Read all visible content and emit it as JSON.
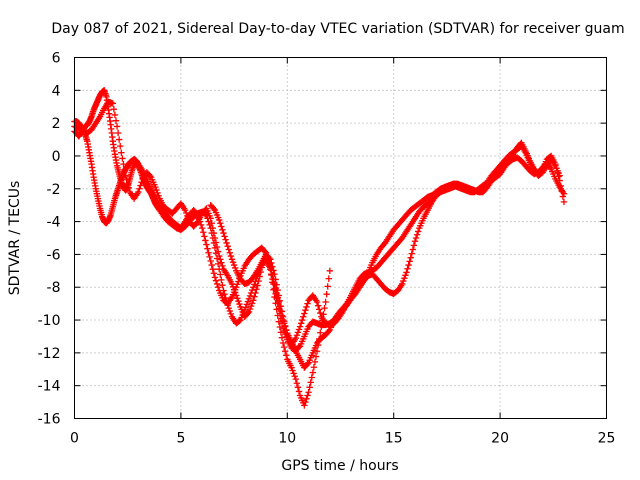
{
  "chart_data": {
    "type": "scatter",
    "title": "Day 087 of 2021, Sidereal Day-to-day VTEC variation (SDTVAR) for receiver guam",
    "xlabel": "GPS time / hours",
    "ylabel": "SDTVAR / TECUs",
    "xlim": [
      0,
      25
    ],
    "ylim": [
      -16,
      6
    ],
    "xticks": [
      "0",
      "5",
      "10",
      "15",
      "20",
      "25"
    ],
    "yticks": [
      "6",
      "4",
      "2",
      "0",
      "-2",
      "-4",
      "-6",
      "-8",
      "-10",
      "-12",
      "-14",
      "-16"
    ],
    "grid": true,
    "marker_color": "#ff0000",
    "series": [
      {
        "x": [
          0.0,
          0.1,
          0.2,
          0.3,
          0.4,
          0.5,
          0.6,
          0.7,
          0.8,
          0.9,
          1.0,
          1.1,
          1.2,
          1.3,
          1.4,
          1.5,
          1.6,
          1.7,
          1.8,
          1.9,
          2.0,
          2.1,
          2.2,
          2.3,
          2.4,
          2.5,
          2.6,
          2.7,
          2.8,
          2.9,
          3.0,
          3.1,
          3.2,
          3.3,
          3.4,
          3.5,
          3.6,
          3.7,
          3.8,
          3.9,
          4.0,
          4.2,
          4.4,
          4.6,
          4.8,
          5.0,
          5.2,
          5.4,
          5.6,
          5.8,
          6.0,
          6.2,
          6.4,
          6.6,
          6.8,
          7.0,
          7.2,
          7.4,
          7.6,
          7.8,
          8.0,
          8.2,
          8.4,
          8.6,
          8.8,
          9.0,
          9.2,
          9.4,
          9.6,
          9.8,
          10.0,
          10.2,
          10.4,
          10.6,
          10.8,
          11.0,
          11.2,
          11.4,
          11.6,
          11.8,
          12.0
        ],
        "y": [
          1.5,
          1.4,
          1.2,
          1.4,
          1.6,
          1.8,
          1.9,
          2.1,
          2.4,
          2.8,
          3.1,
          3.4,
          3.7,
          3.9,
          4.0,
          3.6,
          2.8,
          1.9,
          0.9,
          0.1,
          -0.6,
          -1.1,
          -1.6,
          -1.9,
          -2.1,
          -1.9,
          -1.4,
          -0.9,
          -0.5,
          -0.4,
          -0.6,
          -0.9,
          -1.3,
          -1.6,
          -1.9,
          -2.1,
          -2.3,
          -2.6,
          -2.9,
          -3.1,
          -3.3,
          -3.7,
          -4.0,
          -4.2,
          -4.4,
          -4.5,
          -4.3,
          -4.0,
          -3.7,
          -3.5,
          -3.4,
          -3.6,
          -4.4,
          -5.6,
          -6.9,
          -8.2,
          -9.1,
          -9.8,
          -10.2,
          -10.0,
          -9.4,
          -8.7,
          -8.0,
          -7.3,
          -6.6,
          -6.1,
          -6.8,
          -8.6,
          -10.1,
          -11.4,
          -12.4,
          -12.9,
          -13.6,
          -14.6,
          -15.2,
          -14.4,
          -13.2,
          -11.9,
          -10.4,
          -8.9,
          -7.0
        ]
      },
      {
        "x": [
          0.0,
          0.1,
          0.2,
          0.3,
          0.4,
          0.5,
          0.6,
          0.7,
          0.8,
          0.9,
          1.0,
          1.1,
          1.2,
          1.3,
          1.4,
          1.5,
          1.6,
          1.7,
          1.8,
          1.9,
          2.0,
          2.1,
          2.2,
          2.3,
          2.4,
          2.5,
          2.6,
          2.7,
          2.8,
          2.9,
          3.0,
          3.2,
          3.4,
          3.6,
          3.8,
          4.0,
          4.2,
          4.4,
          4.6,
          4.8,
          5.0,
          5.2,
          5.4,
          5.6,
          5.8,
          6.0,
          6.2,
          6.4,
          6.6,
          6.8,
          7.0,
          7.2,
          7.4,
          7.6,
          7.8,
          8.0,
          8.2,
          8.4,
          8.6,
          8.8,
          9.0,
          9.2,
          9.4,
          9.6,
          9.8,
          10.0,
          10.2,
          10.4,
          10.6,
          10.8,
          11.0,
          11.2,
          11.4,
          11.6,
          11.8,
          12.0,
          12.2,
          12.4,
          12.6,
          12.8,
          13.0,
          13.2,
          13.4,
          13.6,
          13.8,
          14.0,
          14.2,
          14.4,
          14.6,
          14.8,
          15.0,
          15.2,
          15.4,
          15.6,
          15.8,
          16.0,
          16.2,
          16.4,
          16.6,
          16.8,
          17.0,
          17.2,
          17.4,
          17.6,
          17.8,
          18.0,
          18.2,
          18.4,
          18.6,
          18.8,
          19.0,
          19.2,
          19.4,
          19.6,
          19.8,
          20.0,
          20.2,
          20.4,
          20.6,
          20.8,
          21.0,
          21.2,
          21.4,
          21.6,
          21.8,
          22.0,
          22.2,
          22.4,
          22.6,
          22.8,
          23.0
        ],
        "y": [
          2.1,
          2.1,
          2.0,
          1.8,
          1.6,
          1.3,
          0.9,
          0.2,
          -0.5,
          -1.3,
          -2.0,
          -2.6,
          -3.2,
          -3.7,
          -4.0,
          -4.1,
          -3.9,
          -3.6,
          -3.1,
          -2.6,
          -2.2,
          -1.8,
          -1.4,
          -1.1,
          -0.8,
          -0.6,
          -0.4,
          -0.3,
          -0.2,
          -0.3,
          -0.5,
          -0.9,
          -1.4,
          -2.0,
          -2.5,
          -3.0,
          -3.4,
          -3.7,
          -4.0,
          -4.2,
          -4.4,
          -4.0,
          -3.6,
          -3.3,
          -3.6,
          -4.4,
          -5.4,
          -6.4,
          -7.4,
          -8.2,
          -8.8,
          -9.0,
          -8.6,
          -8.0,
          -7.3,
          -6.7,
          -6.3,
          -6.0,
          -5.8,
          -5.6,
          -5.9,
          -6.7,
          -7.8,
          -8.9,
          -10.0,
          -10.8,
          -11.4,
          -11.8,
          -11.6,
          -11.0,
          -10.4,
          -10.1,
          -10.2,
          -10.3,
          -10.3,
          -10.2,
          -10.0,
          -9.7,
          -9.4,
          -9.1,
          -8.7,
          -8.4,
          -8.0,
          -7.6,
          -7.1,
          -6.5,
          -6.0,
          -5.6,
          -5.3,
          -4.9,
          -4.5,
          -4.2,
          -3.9,
          -3.6,
          -3.3,
          -3.1,
          -2.9,
          -2.7,
          -2.5,
          -2.4,
          -2.2,
          -2.0,
          -1.9,
          -1.8,
          -1.7,
          -1.7,
          -1.8,
          -1.9,
          -2.0,
          -2.1,
          -2.2,
          -2.2,
          -1.9,
          -1.5,
          -1.1,
          -0.8,
          -0.6,
          -0.4,
          -0.2,
          -0.1,
          -0.3,
          -0.6,
          -0.9,
          -1.1,
          -1.0,
          -0.7,
          -0.4,
          -0.8,
          -1.4,
          -1.9,
          -2.3
        ]
      },
      {
        "x": [
          0.0,
          0.2,
          0.4,
          0.6,
          0.8,
          1.0,
          1.2,
          1.4,
          1.6,
          1.8,
          2.0,
          2.2,
          2.4,
          2.6,
          2.8,
          3.0,
          3.2,
          3.4,
          3.6,
          3.8,
          4.0,
          4.2,
          4.4,
          4.6,
          4.8,
          5.0,
          5.2,
          5.4,
          5.6,
          5.8,
          6.0,
          6.2,
          6.4,
          6.6,
          6.8,
          7.0,
          7.2,
          7.4,
          7.6,
          7.8,
          8.0,
          8.2,
          8.4,
          8.6,
          8.8,
          9.0,
          9.2,
          9.4,
          9.6,
          9.8,
          10.0,
          10.2,
          10.4,
          10.6,
          10.8,
          11.0,
          11.2,
          11.4,
          11.6,
          11.8,
          12.0,
          12.2,
          12.4,
          12.6,
          12.8,
          13.0,
          13.2,
          13.4,
          13.6,
          13.8,
          14.0,
          14.2,
          14.4,
          14.6,
          14.8,
          15.0,
          15.2,
          15.4,
          15.6,
          15.8,
          16.0,
          16.2,
          16.4,
          16.6,
          16.8,
          17.0,
          17.2,
          17.4,
          17.6,
          17.8,
          18.0,
          18.2,
          18.4,
          18.6,
          18.8,
          19.0,
          19.2,
          19.4,
          19.6,
          19.8,
          20.0,
          20.2,
          20.4,
          20.6,
          20.8,
          21.0,
          21.2,
          21.4,
          21.6,
          21.8,
          22.0,
          22.2,
          22.4,
          22.6,
          22.8
        ],
        "y": [
          1.8,
          1.7,
          1.5,
          1.4,
          1.6,
          2.0,
          2.4,
          2.9,
          3.3,
          3.2,
          1.8,
          0.2,
          -1.2,
          -2.2,
          -2.6,
          -2.2,
          -1.4,
          -1.0,
          -1.3,
          -1.9,
          -2.6,
          -3.1,
          -3.3,
          -3.5,
          -3.2,
          -2.9,
          -3.3,
          -4.0,
          -4.3,
          -4.0,
          -3.5,
          -3.2,
          -3.8,
          -5.0,
          -6.1,
          -6.9,
          -7.3,
          -7.8,
          -8.5,
          -9.2,
          -9.8,
          -9.5,
          -8.8,
          -7.9,
          -6.8,
          -6.2,
          -6.9,
          -8.1,
          -9.3,
          -10.5,
          -11.2,
          -11.7,
          -11.9,
          -12.4,
          -12.9,
          -12.6,
          -12.0,
          -11.4,
          -11.1,
          -10.9,
          -10.6,
          -10.0,
          -9.6,
          -9.3,
          -9.0,
          -8.7,
          -8.3,
          -7.9,
          -7.6,
          -7.3,
          -7.2,
          -7.5,
          -7.8,
          -8.1,
          -8.3,
          -8.4,
          -8.2,
          -7.8,
          -7.1,
          -6.2,
          -5.2,
          -4.4,
          -3.8,
          -3.3,
          -2.8,
          -2.4,
          -2.1,
          -1.9,
          -1.8,
          -1.8,
          -1.9,
          -2.0,
          -2.1,
          -2.2,
          -2.2,
          -2.0,
          -1.8,
          -1.6,
          -1.5,
          -1.3,
          -1.1,
          -0.7,
          -0.3,
          0.1,
          0.5,
          0.8,
          0.3,
          -0.3,
          -0.8,
          -1.2,
          -1.0,
          -0.6,
          -0.2,
          -0.6,
          -1.2
        ]
      },
      {
        "x": [
          6.4,
          6.6,
          6.8,
          7.0,
          7.2,
          7.4,
          7.6,
          7.8,
          8.0,
          8.2,
          8.4,
          8.6,
          8.8,
          9.0,
          9.2,
          9.4,
          9.6,
          9.8,
          10.0,
          10.2,
          10.4,
          10.6,
          10.8,
          11.0,
          11.2,
          11.4,
          11.6,
          11.8,
          12.0,
          12.2,
          12.4,
          12.6,
          12.8,
          13.0,
          13.2,
          13.4,
          13.6,
          13.8,
          14.0,
          14.2,
          14.4,
          14.6,
          14.8,
          15.0,
          15.2,
          15.4,
          15.6,
          15.8,
          16.0,
          16.2,
          16.4,
          16.6,
          16.8,
          17.0,
          17.2,
          17.4,
          17.6,
          17.8,
          18.0,
          18.2,
          18.4,
          18.6,
          18.8,
          19.0,
          19.2,
          19.4,
          19.6,
          19.8,
          20.0,
          20.2,
          20.4,
          20.6,
          20.8,
          21.0,
          21.2,
          21.4,
          21.6,
          21.8,
          22.0,
          22.2,
          22.4,
          22.6,
          22.8,
          23.0
        ],
        "y": [
          -3.0,
          -3.3,
          -3.9,
          -4.7,
          -5.5,
          -6.3,
          -7.0,
          -7.5,
          -7.8,
          -7.7,
          -7.4,
          -7.0,
          -6.5,
          -6.0,
          -6.3,
          -7.2,
          -8.5,
          -9.8,
          -10.9,
          -11.5,
          -11.1,
          -10.4,
          -9.6,
          -8.8,
          -8.5,
          -8.9,
          -9.8,
          -10.2,
          -10.3,
          -10.2,
          -9.9,
          -9.5,
          -9.0,
          -8.5,
          -8.0,
          -7.5,
          -7.2,
          -7.1,
          -7.0,
          -6.8,
          -6.5,
          -6.2,
          -5.9,
          -5.6,
          -5.3,
          -5.0,
          -4.6,
          -4.2,
          -3.8,
          -3.4,
          -3.1,
          -2.9,
          -2.6,
          -2.4,
          -2.2,
          -2.1,
          -2.0,
          -1.9,
          -1.8,
          -1.8,
          -1.9,
          -2.0,
          -2.1,
          -2.2,
          -2.0,
          -1.6,
          -1.2,
          -0.9,
          -0.6,
          -0.3,
          0.0,
          0.2,
          0.4,
          0.6,
          0.2,
          -0.4,
          -0.9,
          -1.2,
          -0.8,
          -0.2,
          0.0,
          -0.5,
          -1.5,
          -2.8
        ]
      }
    ]
  }
}
